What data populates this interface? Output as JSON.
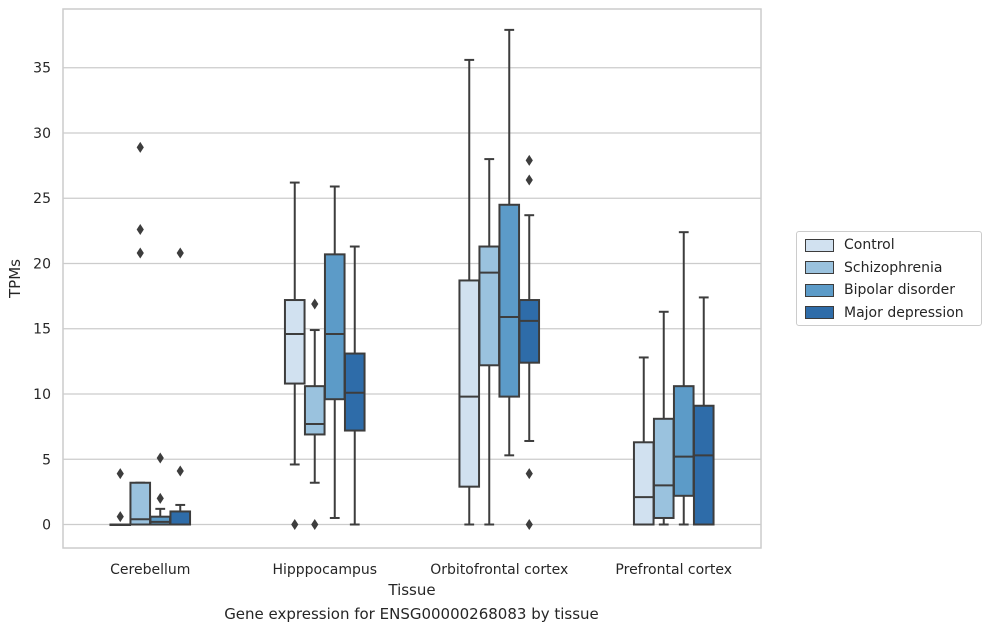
{
  "chart_data": {
    "type": "box",
    "title": "",
    "caption": "Gene expression for ENSG00000268083 by tissue",
    "xlabel": "Tissue",
    "ylabel": "TPMs",
    "ylim": [
      -1.8,
      39.5
    ],
    "yticks": [
      0,
      5,
      10,
      15,
      20,
      25,
      30,
      35
    ],
    "grid": "horizontal",
    "legend_position": "right",
    "categories": [
      "Cerebellum",
      "Hipppocampus",
      "Orbitofrontal cortex",
      "Prefrontal cortex"
    ],
    "series": [
      {
        "name": "Control",
        "color": "#d1e1f0",
        "boxes": [
          {
            "whislo": 0,
            "q1": 0,
            "med": 0,
            "q3": 0,
            "whishi": 0,
            "fliers": [
              0.6,
              3.9
            ]
          },
          {
            "whislo": 4.6,
            "q1": 10.8,
            "med": 14.6,
            "q3": 17.2,
            "whishi": 26.2,
            "fliers": [
              0
            ]
          },
          {
            "whislo": 0,
            "q1": 2.9,
            "med": 9.8,
            "q3": 18.7,
            "whishi": 35.6,
            "fliers": []
          },
          {
            "whislo": 0,
            "q1": 0,
            "med": 2.1,
            "q3": 6.3,
            "whishi": 12.8,
            "fliers": []
          }
        ]
      },
      {
        "name": "Schizophrenia",
        "color": "#9ac2de",
        "boxes": [
          {
            "whislo": 0,
            "q1": 0,
            "med": 0.4,
            "q3": 3.2,
            "whishi": 3.2,
            "fliers": [
              20.8,
              22.6,
              28.9
            ]
          },
          {
            "whislo": 3.2,
            "q1": 6.9,
            "med": 7.7,
            "q3": 10.6,
            "whishi": 14.9,
            "fliers": [
              0,
              16.9
            ]
          },
          {
            "whislo": 0,
            "q1": 12.2,
            "med": 19.3,
            "q3": 21.3,
            "whishi": 28.0,
            "fliers": []
          },
          {
            "whislo": 0,
            "q1": 0.5,
            "med": 3.0,
            "q3": 8.1,
            "whishi": 16.3,
            "fliers": []
          }
        ]
      },
      {
        "name": "Bipolar disorder",
        "color": "#5c9bc8",
        "boxes": [
          {
            "whislo": 0,
            "q1": 0,
            "med": 0.2,
            "q3": 0.6,
            "whishi": 1.2,
            "fliers": [
              2.0,
              5.1
            ]
          },
          {
            "whislo": 0.5,
            "q1": 9.6,
            "med": 14.6,
            "q3": 20.7,
            "whishi": 25.9,
            "fliers": []
          },
          {
            "whislo": 5.3,
            "q1": 9.8,
            "med": 15.9,
            "q3": 24.5,
            "whishi": 37.9,
            "fliers": []
          },
          {
            "whislo": 0,
            "q1": 2.2,
            "med": 5.2,
            "q3": 10.6,
            "whishi": 22.4,
            "fliers": []
          }
        ]
      },
      {
        "name": "Major depression",
        "color": "#2e6ca9",
        "boxes": [
          {
            "whislo": 0,
            "q1": 0,
            "med": 0,
            "q3": 1.0,
            "whishi": 1.5,
            "fliers": [
              4.1,
              20.8
            ]
          },
          {
            "whislo": 0,
            "q1": 7.2,
            "med": 10.1,
            "q3": 13.1,
            "whishi": 21.3,
            "fliers": []
          },
          {
            "whislo": 6.4,
            "q1": 12.4,
            "med": 15.6,
            "q3": 17.2,
            "whishi": 23.7,
            "fliers": [
              0,
              3.9,
              26.4,
              27.9
            ]
          },
          {
            "whislo": 0,
            "q1": 0,
            "med": 5.3,
            "q3": 9.1,
            "whishi": 17.4,
            "fliers": []
          }
        ]
      }
    ]
  }
}
